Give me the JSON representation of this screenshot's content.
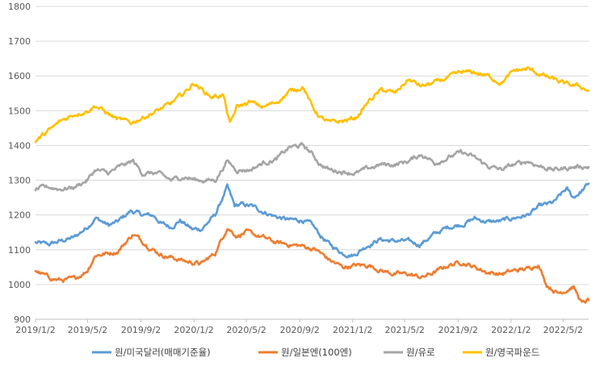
{
  "chart_data": {
    "type": "line",
    "ylim": [
      900,
      1800
    ],
    "yticks": [
      900,
      1000,
      1100,
      1200,
      1300,
      1400,
      1500,
      1600,
      1700,
      1800
    ],
    "xlim": [
      "2019-01-02",
      "2022-06-30"
    ],
    "xtick_labels": [
      "2019/1/2",
      "2019/5/2",
      "2019/9/2",
      "2020/1/2",
      "2020/5/2",
      "2020/9/2",
      "2021/1/2",
      "2021/5/2",
      "2021/9/2",
      "2022/1/2",
      "2022/5/2"
    ],
    "xtick_dates": [
      "2019-01-02",
      "2019-05-02",
      "2019-09-02",
      "2020-01-02",
      "2020-05-02",
      "2020-09-02",
      "2021-01-02",
      "2021-05-02",
      "2021-09-02",
      "2022-01-02",
      "2022-05-02"
    ],
    "legend_position": "bottom",
    "grid": "horizontal",
    "series": [
      {
        "name": "원/미국달러(매매기준율)",
        "color": "#5b9bd5",
        "points": [
          [
            "2019-01-02",
            1120
          ],
          [
            "2019-02-01",
            1115
          ],
          [
            "2019-03-01",
            1125
          ],
          [
            "2019-04-01",
            1135
          ],
          [
            "2019-05-01",
            1165
          ],
          [
            "2019-05-20",
            1192
          ],
          [
            "2019-06-20",
            1170
          ],
          [
            "2019-07-10",
            1180
          ],
          [
            "2019-08-10",
            1212
          ],
          [
            "2019-09-05",
            1200
          ],
          [
            "2019-10-01",
            1198
          ],
          [
            "2019-10-20",
            1175
          ],
          [
            "2019-11-10",
            1165
          ],
          [
            "2019-12-01",
            1185
          ],
          [
            "2019-12-30",
            1158
          ],
          [
            "2020-01-20",
            1160
          ],
          [
            "2020-02-20",
            1200
          ],
          [
            "2020-03-19",
            1280
          ],
          [
            "2020-04-05",
            1225
          ],
          [
            "2020-04-20",
            1230
          ],
          [
            "2020-05-15",
            1225
          ],
          [
            "2020-06-10",
            1210
          ],
          [
            "2020-07-10",
            1195
          ],
          [
            "2020-08-10",
            1185
          ],
          [
            "2020-09-10",
            1185
          ],
          [
            "2020-10-01",
            1170
          ],
          [
            "2020-10-20",
            1140
          ],
          [
            "2020-11-10",
            1115
          ],
          [
            "2020-12-10",
            1090
          ],
          [
            "2021-01-05",
            1085
          ],
          [
            "2021-02-01",
            1110
          ],
          [
            "2021-03-05",
            1130
          ],
          [
            "2021-04-05",
            1125
          ],
          [
            "2021-05-05",
            1125
          ],
          [
            "2021-06-05",
            1115
          ],
          [
            "2021-07-10",
            1145
          ],
          [
            "2021-08-10",
            1165
          ],
          [
            "2021-09-15",
            1175
          ],
          [
            "2021-10-10",
            1190
          ],
          [
            "2021-11-10",
            1180
          ],
          [
            "2021-12-10",
            1182
          ],
          [
            "2022-01-10",
            1192
          ],
          [
            "2022-02-10",
            1200
          ],
          [
            "2022-03-10",
            1225
          ],
          [
            "2022-04-10",
            1235
          ],
          [
            "2022-05-10",
            1275
          ],
          [
            "2022-05-25",
            1250
          ],
          [
            "2022-06-15",
            1270
          ],
          [
            "2022-06-30",
            1290
          ]
        ]
      },
      {
        "name": "원/일본엔(100엔)",
        "color": "#ed7d31",
        "points": [
          [
            "2019-01-02",
            1040
          ],
          [
            "2019-02-01",
            1020
          ],
          [
            "2019-03-01",
            1012
          ],
          [
            "2019-04-01",
            1015
          ],
          [
            "2019-05-01",
            1040
          ],
          [
            "2019-05-20",
            1085
          ],
          [
            "2019-06-20",
            1090
          ],
          [
            "2019-07-10",
            1095
          ],
          [
            "2019-08-15",
            1145
          ],
          [
            "2019-09-05",
            1125
          ],
          [
            "2019-10-01",
            1100
          ],
          [
            "2019-10-20",
            1085
          ],
          [
            "2019-11-20",
            1075
          ],
          [
            "2019-12-20",
            1065
          ],
          [
            "2020-01-20",
            1060
          ],
          [
            "2020-02-20",
            1090
          ],
          [
            "2020-03-19",
            1165
          ],
          [
            "2020-04-10",
            1140
          ],
          [
            "2020-05-01",
            1150
          ],
          [
            "2020-06-10",
            1135
          ],
          [
            "2020-07-10",
            1120
          ],
          [
            "2020-08-10",
            1115
          ],
          [
            "2020-09-10",
            1110
          ],
          [
            "2020-10-10",
            1100
          ],
          [
            "2020-11-10",
            1070
          ],
          [
            "2020-12-10",
            1050
          ],
          [
            "2021-01-10",
            1055
          ],
          [
            "2021-02-10",
            1055
          ],
          [
            "2021-03-10",
            1040
          ],
          [
            "2021-04-10",
            1030
          ],
          [
            "2021-05-10",
            1030
          ],
          [
            "2021-06-10",
            1020
          ],
          [
            "2021-07-10",
            1035
          ],
          [
            "2021-08-10",
            1055
          ],
          [
            "2021-09-10",
            1065
          ],
          [
            "2021-10-10",
            1050
          ],
          [
            "2021-11-10",
            1035
          ],
          [
            "2021-12-10",
            1030
          ],
          [
            "2022-01-10",
            1040
          ],
          [
            "2022-02-10",
            1045
          ],
          [
            "2022-03-05",
            1060
          ],
          [
            "2022-03-25",
            1000
          ],
          [
            "2022-04-20",
            975
          ],
          [
            "2022-05-10",
            985
          ],
          [
            "2022-05-25",
            995
          ],
          [
            "2022-06-15",
            945
          ],
          [
            "2022-06-30",
            955
          ]
        ]
      },
      {
        "name": "원/유로",
        "color": "#a5a5a5",
        "points": [
          [
            "2019-01-02",
            1275
          ],
          [
            "2019-02-01",
            1280
          ],
          [
            "2019-03-01",
            1275
          ],
          [
            "2019-04-01",
            1280
          ],
          [
            "2019-05-01",
            1300
          ],
          [
            "2019-05-20",
            1330
          ],
          [
            "2019-06-20",
            1320
          ],
          [
            "2019-07-10",
            1335
          ],
          [
            "2019-08-15",
            1355
          ],
          [
            "2019-09-05",
            1320
          ],
          [
            "2019-10-10",
            1320
          ],
          [
            "2019-11-10",
            1300
          ],
          [
            "2019-12-10",
            1310
          ],
          [
            "2020-01-10",
            1300
          ],
          [
            "2020-02-20",
            1300
          ],
          [
            "2020-03-19",
            1355
          ],
          [
            "2020-04-10",
            1330
          ],
          [
            "2020-05-10",
            1330
          ],
          [
            "2020-06-10",
            1350
          ],
          [
            "2020-07-10",
            1360
          ],
          [
            "2020-08-10",
            1395
          ],
          [
            "2020-09-10",
            1400
          ],
          [
            "2020-10-01",
            1375
          ],
          [
            "2020-10-20",
            1345
          ],
          [
            "2020-11-10",
            1330
          ],
          [
            "2020-12-10",
            1325
          ],
          [
            "2021-01-10",
            1320
          ],
          [
            "2021-02-10",
            1335
          ],
          [
            "2021-03-10",
            1345
          ],
          [
            "2021-04-10",
            1345
          ],
          [
            "2021-05-10",
            1355
          ],
          [
            "2021-06-10",
            1375
          ],
          [
            "2021-07-10",
            1350
          ],
          [
            "2021-08-10",
            1365
          ],
          [
            "2021-09-10",
            1380
          ],
          [
            "2021-10-10",
            1365
          ],
          [
            "2021-11-10",
            1340
          ],
          [
            "2021-12-10",
            1330
          ],
          [
            "2022-01-10",
            1345
          ],
          [
            "2022-02-10",
            1355
          ],
          [
            "2022-03-10",
            1340
          ],
          [
            "2022-04-10",
            1330
          ],
          [
            "2022-05-10",
            1335
          ],
          [
            "2022-06-10",
            1340
          ],
          [
            "2022-06-30",
            1338
          ]
        ]
      },
      {
        "name": "원/영국파운드",
        "color": "#ffc000",
        "points": [
          [
            "2019-01-02",
            1410
          ],
          [
            "2019-01-20",
            1430
          ],
          [
            "2019-02-10",
            1450
          ],
          [
            "2019-03-01",
            1470
          ],
          [
            "2019-04-01",
            1490
          ],
          [
            "2019-05-01",
            1500
          ],
          [
            "2019-05-20",
            1515
          ],
          [
            "2019-06-20",
            1490
          ],
          [
            "2019-07-10",
            1475
          ],
          [
            "2019-08-10",
            1465
          ],
          [
            "2019-09-05",
            1480
          ],
          [
            "2019-10-10",
            1500
          ],
          [
            "2019-11-10",
            1520
          ],
          [
            "2019-12-10",
            1550
          ],
          [
            "2020-01-02",
            1580
          ],
          [
            "2020-02-10",
            1540
          ],
          [
            "2020-03-10",
            1545
          ],
          [
            "2020-03-25",
            1460
          ],
          [
            "2020-04-10",
            1510
          ],
          [
            "2020-05-10",
            1525
          ],
          [
            "2020-06-10",
            1510
          ],
          [
            "2020-07-10",
            1525
          ],
          [
            "2020-08-10",
            1555
          ],
          [
            "2020-09-10",
            1570
          ],
          [
            "2020-10-01",
            1510
          ],
          [
            "2020-10-20",
            1480
          ],
          [
            "2020-11-10",
            1465
          ],
          [
            "2020-12-10",
            1470
          ],
          [
            "2021-01-10",
            1480
          ],
          [
            "2021-02-10",
            1530
          ],
          [
            "2021-03-10",
            1560
          ],
          [
            "2021-04-10",
            1550
          ],
          [
            "2021-05-10",
            1590
          ],
          [
            "2021-06-10",
            1570
          ],
          [
            "2021-07-10",
            1580
          ],
          [
            "2021-08-10",
            1595
          ],
          [
            "2021-09-10",
            1610
          ],
          [
            "2021-10-10",
            1610
          ],
          [
            "2021-11-10",
            1600
          ],
          [
            "2021-12-10",
            1580
          ],
          [
            "2022-01-10",
            1615
          ],
          [
            "2022-02-10",
            1620
          ],
          [
            "2022-03-10",
            1605
          ],
          [
            "2022-04-10",
            1590
          ],
          [
            "2022-05-10",
            1575
          ],
          [
            "2022-06-10",
            1570
          ],
          [
            "2022-06-30",
            1558
          ]
        ]
      }
    ]
  }
}
